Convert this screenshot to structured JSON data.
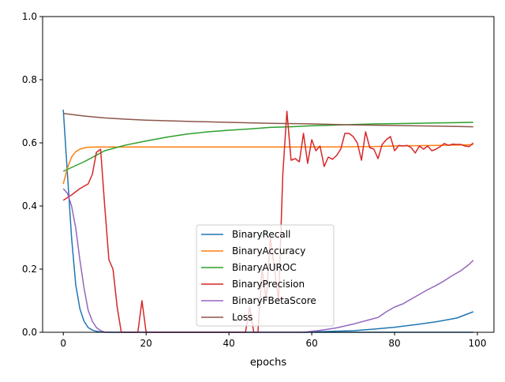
{
  "chart_data": {
    "type": "line",
    "title": "",
    "xlabel": "epochs",
    "ylabel": "",
    "xlim": [
      -5,
      104
    ],
    "ylim": [
      0.0,
      1.0
    ],
    "xticks": [
      0,
      20,
      40,
      60,
      80,
      100
    ],
    "yticks": [
      0.0,
      0.2,
      0.4,
      0.6,
      0.8,
      1.0
    ],
    "xtick_labels": [
      "0",
      "20",
      "40",
      "60",
      "80",
      "100"
    ],
    "ytick_labels": [
      "0.0",
      "0.2",
      "0.4",
      "0.6",
      "0.8",
      "1.0"
    ],
    "grid": false,
    "legend_position": "lower-center",
    "series": [
      {
        "name": "BinaryRecall",
        "color": "#1f77b4",
        "points": [
          [
            0,
            0.705
          ],
          [
            1,
            0.5
          ],
          [
            2,
            0.3
          ],
          [
            3,
            0.15
          ],
          [
            4,
            0.075
          ],
          [
            5,
            0.035
          ],
          [
            6,
            0.015
          ],
          [
            7,
            0.007
          ],
          [
            8,
            0.003
          ],
          [
            9,
            0.001
          ],
          [
            10,
            0
          ],
          [
            99,
            0
          ]
        ],
        "tail": [
          [
            58,
            0
          ],
          [
            60,
            0.001
          ],
          [
            65,
            0.003
          ],
          [
            70,
            0.005
          ],
          [
            75,
            0.01
          ],
          [
            80,
            0.016
          ],
          [
            85,
            0.024
          ],
          [
            90,
            0.033
          ],
          [
            95,
            0.045
          ],
          [
            99,
            0.065
          ]
        ]
      },
      {
        "name": "BinaryAccuracy",
        "color": "#ff7f0e",
        "points": [
          [
            0,
            0.47
          ],
          [
            1,
            0.52
          ],
          [
            2,
            0.555
          ],
          [
            3,
            0.572
          ],
          [
            4,
            0.58
          ],
          [
            5,
            0.584
          ],
          [
            6,
            0.586
          ],
          [
            8,
            0.587
          ],
          [
            20,
            0.587
          ],
          [
            40,
            0.587
          ],
          [
            60,
            0.587
          ],
          [
            75,
            0.588
          ],
          [
            80,
            0.59
          ],
          [
            90,
            0.592
          ],
          [
            99,
            0.594
          ]
        ]
      },
      {
        "name": "BinaryAUROC",
        "color": "#2ca02c",
        "points": [
          [
            0,
            0.51
          ],
          [
            5,
            0.54
          ],
          [
            10,
            0.575
          ],
          [
            15,
            0.593
          ],
          [
            20,
            0.606
          ],
          [
            25,
            0.618
          ],
          [
            30,
            0.628
          ],
          [
            35,
            0.635
          ],
          [
            40,
            0.64
          ],
          [
            45,
            0.644
          ],
          [
            50,
            0.649
          ],
          [
            55,
            0.651
          ],
          [
            60,
            0.654
          ],
          [
            65,
            0.656
          ],
          [
            70,
            0.658
          ],
          [
            75,
            0.66
          ],
          [
            80,
            0.661
          ],
          [
            85,
            0.662
          ],
          [
            90,
            0.663
          ],
          [
            95,
            0.664
          ],
          [
            99,
            0.665
          ]
        ]
      },
      {
        "name": "BinaryPrecision",
        "color": "#d62728",
        "points": [
          [
            0,
            0.418
          ],
          [
            2,
            0.435
          ],
          [
            4,
            0.455
          ],
          [
            6,
            0.47
          ],
          [
            7,
            0.5
          ],
          [
            8,
            0.57
          ],
          [
            9,
            0.58
          ],
          [
            10,
            0.4
          ],
          [
            11,
            0.23
          ],
          [
            12,
            0.2
          ],
          [
            13,
            0.08
          ],
          [
            14,
            0
          ],
          [
            18,
            0
          ],
          [
            19,
            0.1
          ],
          [
            20,
            0
          ],
          [
            44,
            0
          ],
          [
            45,
            0.08
          ],
          [
            46,
            0
          ],
          [
            47,
            0
          ],
          [
            48,
            0.2
          ],
          [
            49,
            0.1
          ],
          [
            50,
            0.3
          ],
          [
            51,
            0.2
          ],
          [
            52,
            0.1
          ],
          [
            53,
            0.5
          ],
          [
            54,
            0.7
          ],
          [
            55,
            0.545
          ],
          [
            56,
            0.55
          ],
          [
            57,
            0.54
          ],
          [
            58,
            0.63
          ],
          [
            59,
            0.535
          ],
          [
            60,
            0.61
          ],
          [
            61,
            0.575
          ],
          [
            62,
            0.59
          ],
          [
            63,
            0.525
          ],
          [
            64,
            0.555
          ],
          [
            65,
            0.548
          ],
          [
            66,
            0.56
          ],
          [
            67,
            0.58
          ],
          [
            68,
            0.63
          ],
          [
            69,
            0.63
          ],
          [
            70,
            0.62
          ],
          [
            71,
            0.6
          ],
          [
            72,
            0.545
          ],
          [
            73,
            0.635
          ],
          [
            74,
            0.585
          ],
          [
            75,
            0.58
          ],
          [
            76,
            0.55
          ],
          [
            77,
            0.595
          ],
          [
            78,
            0.61
          ],
          [
            79,
            0.62
          ],
          [
            80,
            0.575
          ],
          [
            81,
            0.592
          ],
          [
            82,
            0.59
          ],
          [
            83,
            0.592
          ],
          [
            84,
            0.585
          ],
          [
            85,
            0.568
          ],
          [
            86,
            0.59
          ],
          [
            87,
            0.58
          ],
          [
            88,
            0.59
          ],
          [
            89,
            0.575
          ],
          [
            90,
            0.58
          ],
          [
            91,
            0.588
          ],
          [
            92,
            0.598
          ],
          [
            93,
            0.592
          ],
          [
            94,
            0.596
          ],
          [
            95,
            0.595
          ],
          [
            96,
            0.595
          ],
          [
            97,
            0.59
          ],
          [
            98,
            0.588
          ],
          [
            99,
            0.6
          ]
        ]
      },
      {
        "name": "BinaryFBetaScore",
        "color": "#9467bd",
        "points": [
          [
            0,
            0.455
          ],
          [
            1,
            0.44
          ],
          [
            2,
            0.4
          ],
          [
            3,
            0.33
          ],
          [
            4,
            0.23
          ],
          [
            5,
            0.14
          ],
          [
            6,
            0.07
          ],
          [
            7,
            0.035
          ],
          [
            8,
            0.015
          ],
          [
            9,
            0.005
          ],
          [
            10,
            0.001
          ],
          [
            12,
            0
          ],
          [
            58,
            0
          ],
          [
            60,
            0.003
          ],
          [
            62,
            0.006
          ],
          [
            64,
            0.01
          ],
          [
            66,
            0.014
          ],
          [
            68,
            0.02
          ],
          [
            70,
            0.026
          ],
          [
            72,
            0.033
          ],
          [
            74,
            0.04
          ],
          [
            76,
            0.047
          ],
          [
            78,
            0.065
          ],
          [
            80,
            0.08
          ],
          [
            82,
            0.09
          ],
          [
            84,
            0.105
          ],
          [
            86,
            0.12
          ],
          [
            88,
            0.135
          ],
          [
            90,
            0.148
          ],
          [
            92,
            0.163
          ],
          [
            94,
            0.18
          ],
          [
            96,
            0.195
          ],
          [
            98,
            0.215
          ],
          [
            99,
            0.228
          ]
        ]
      },
      {
        "name": "Loss",
        "color": "#8c564b",
        "points": [
          [
            0,
            0.693
          ],
          [
            5,
            0.685
          ],
          [
            10,
            0.679
          ],
          [
            15,
            0.675
          ],
          [
            20,
            0.672
          ],
          [
            30,
            0.668
          ],
          [
            40,
            0.665
          ],
          [
            50,
            0.662
          ],
          [
            60,
            0.66
          ],
          [
            70,
            0.657
          ],
          [
            80,
            0.655
          ],
          [
            90,
            0.653
          ],
          [
            99,
            0.651
          ]
        ]
      }
    ]
  }
}
